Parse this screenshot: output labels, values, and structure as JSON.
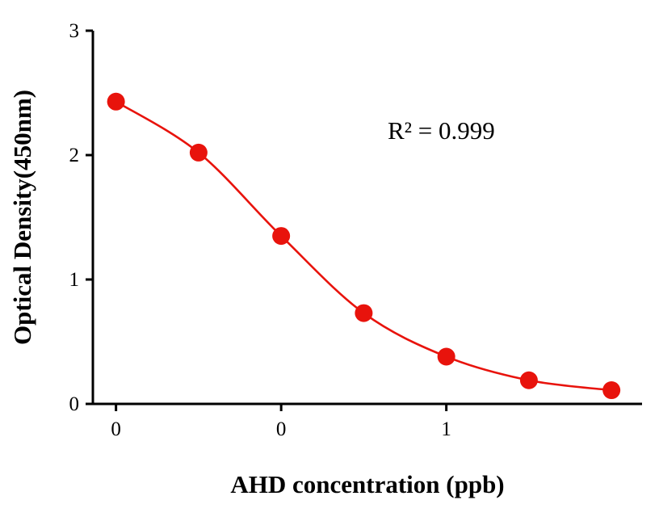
{
  "chart_data": {
    "type": "line",
    "title": "",
    "xlabel": "AHD concentration (ppb)",
    "ylabel": "Optical Density(450nm)",
    "annotation": "R² = 0.999",
    "legend": "none",
    "grid": false,
    "series_color": "#e8130c",
    "axis_color": "#000000",
    "x": [
      0,
      1,
      2,
      3,
      4,
      5,
      6
    ],
    "y": [
      2.43,
      2.02,
      1.35,
      0.73,
      0.38,
      0.19,
      0.11
    ],
    "xlim": [
      -0.28,
      6.37
    ],
    "ylim": [
      0,
      3
    ],
    "x_ticks": [
      {
        "x": 0,
        "label": "0"
      },
      {
        "x": 2,
        "label": "0"
      },
      {
        "x": 4,
        "label": "1"
      }
    ],
    "y_ticks": [
      {
        "y": 0,
        "label": "0"
      },
      {
        "y": 1,
        "label": "1"
      },
      {
        "y": 2,
        "label": "2"
      },
      {
        "y": 3,
        "label": "3"
      }
    ]
  }
}
